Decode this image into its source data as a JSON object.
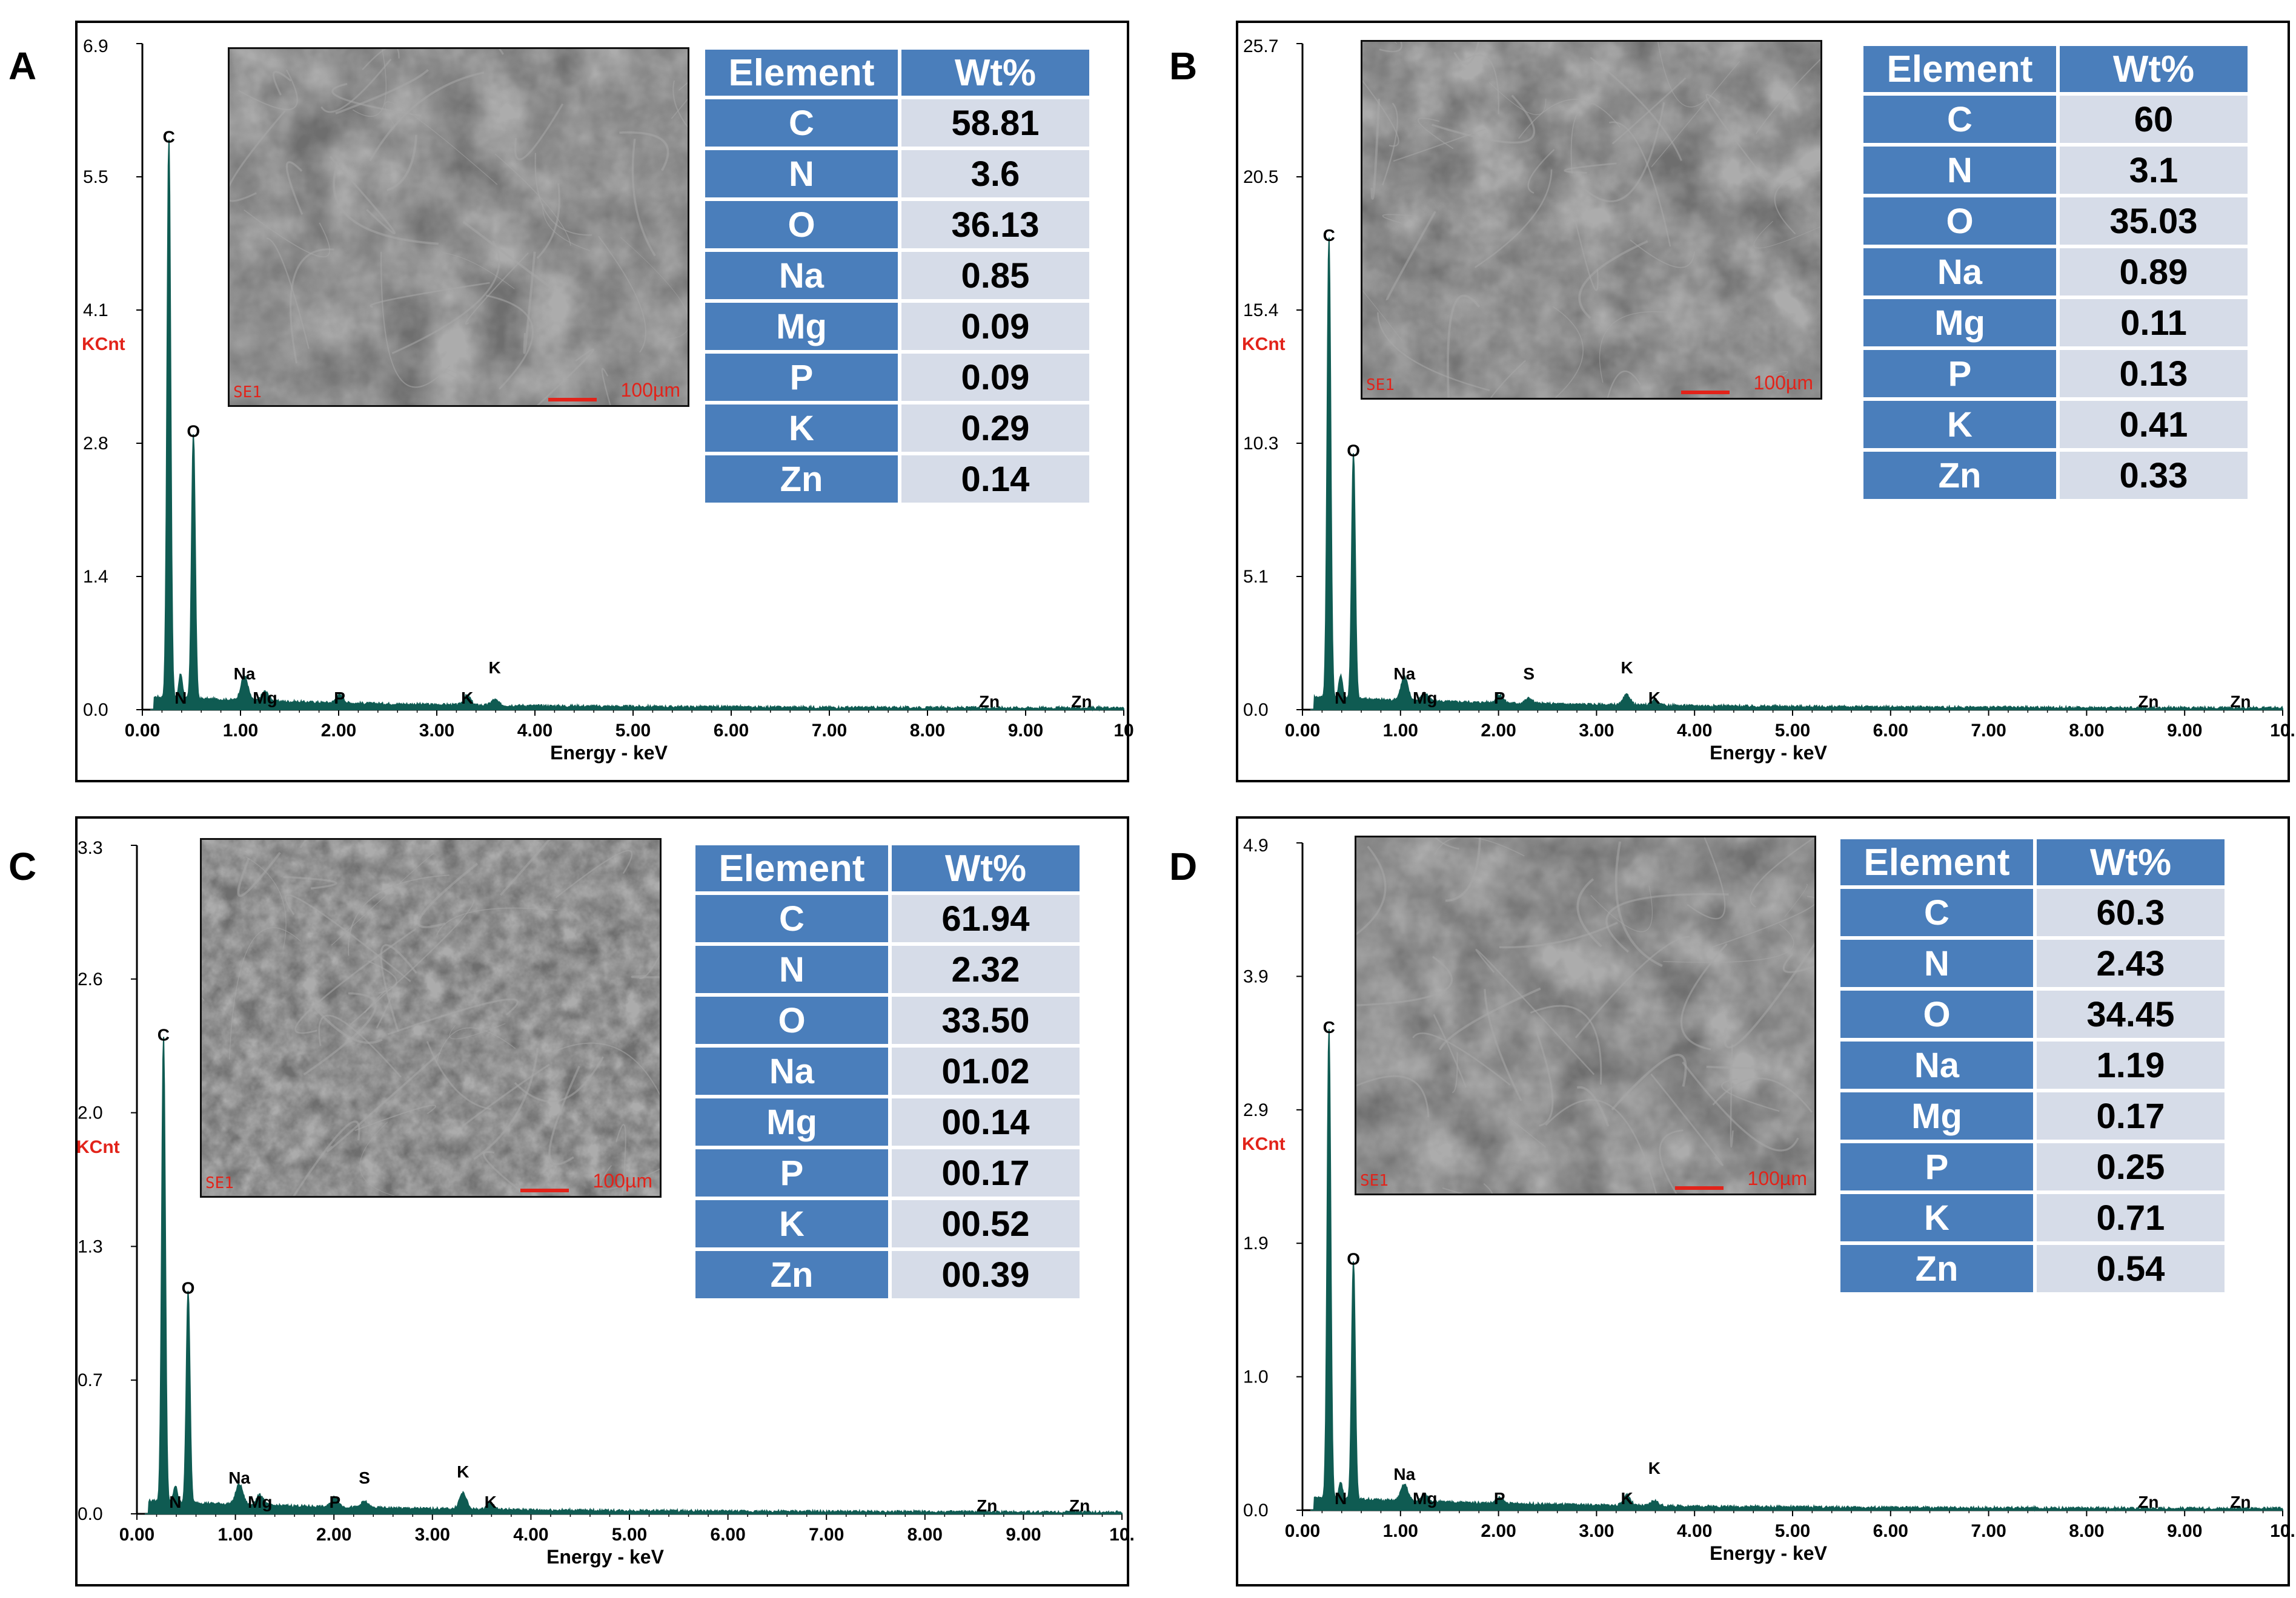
{
  "chart_data": [
    {
      "panel": "A",
      "type": "line",
      "ylabel": "KCnt",
      "xlabel": "Energy - keV",
      "ylim": [
        0,
        6.9
      ],
      "xlim": [
        0,
        10
      ],
      "ytick_labels": [
        "0.0",
        "1.4",
        "2.8",
        "4.1",
        "5.5",
        "6.9"
      ],
      "xtick_labels": [
        "0.00",
        "1.00",
        "2.00",
        "3.00",
        "4.00",
        "5.00",
        "6.00",
        "7.00",
        "8.00",
        "9.00",
        "10"
      ],
      "peaks": [
        {
          "label": "C",
          "x": 0.27,
          "y": 5.8
        },
        {
          "label": "N",
          "x": 0.39,
          "y": 0.25
        },
        {
          "label": "O",
          "x": 0.52,
          "y": 2.75
        },
        {
          "label": "Na",
          "x": 1.04,
          "y": 0.25
        },
        {
          "label": "Mg",
          "x": 1.25,
          "y": 0.1
        },
        {
          "label": "P",
          "x": 2.01,
          "y": 0.08
        },
        {
          "label": "K",
          "x": 3.31,
          "y": 0.1
        },
        {
          "label": "K",
          "x": 3.59,
          "y": 0.06
        },
        {
          "label": "Zn",
          "x": 8.63,
          "y": 0.0
        },
        {
          "label": "Zn",
          "x": 9.57,
          "y": 0.0
        }
      ],
      "sem": {
        "label": "SE1",
        "scale": "100µm"
      },
      "table": {
        "header": [
          "Element",
          "Wt%"
        ],
        "rows": [
          [
            "C",
            "58.81"
          ],
          [
            "N",
            "3.6"
          ],
          [
            "O",
            "36.13"
          ],
          [
            "Na",
            "0.85"
          ],
          [
            "Mg",
            "0.09"
          ],
          [
            "P",
            "0.09"
          ],
          [
            "K",
            "0.29"
          ],
          [
            "Zn",
            "0.14"
          ]
        ]
      }
    },
    {
      "panel": "B",
      "type": "line",
      "ylabel": "KCnt",
      "xlabel": "Energy - keV",
      "ylim": [
        0,
        25.7
      ],
      "xlim": [
        0,
        10
      ],
      "ytick_labels": [
        "0.0",
        "5.1",
        "10.3",
        "15.4",
        "20.5",
        "25.7"
      ],
      "xtick_labels": [
        "0.00",
        "1.00",
        "2.00",
        "3.00",
        "4.00",
        "5.00",
        "6.00",
        "7.00",
        "8.00",
        "9.00",
        "10."
      ],
      "peaks": [
        {
          "label": "C",
          "x": 0.27,
          "y": 17.8
        },
        {
          "label": "N",
          "x": 0.39,
          "y": 0.9
        },
        {
          "label": "O",
          "x": 0.52,
          "y": 9.5
        },
        {
          "label": "Na",
          "x": 1.04,
          "y": 0.9
        },
        {
          "label": "Mg",
          "x": 1.25,
          "y": 0.3
        },
        {
          "label": "P",
          "x": 2.01,
          "y": 0.3
        },
        {
          "label": "S",
          "x": 2.31,
          "y": 0.2
        },
        {
          "label": "K",
          "x": 3.31,
          "y": 0.4
        },
        {
          "label": "K",
          "x": 3.59,
          "y": 0.2
        },
        {
          "label": "Zn",
          "x": 8.63,
          "y": 0.0
        },
        {
          "label": "Zn",
          "x": 9.57,
          "y": 0.0
        }
      ],
      "sem": {
        "label": "SE1",
        "scale": "100µm"
      },
      "table": {
        "header": [
          "Element",
          "Wt%"
        ],
        "rows": [
          [
            "C",
            "60"
          ],
          [
            "N",
            "3.1"
          ],
          [
            "O",
            "35.03"
          ],
          [
            "Na",
            "0.89"
          ],
          [
            "Mg",
            "0.11"
          ],
          [
            "P",
            "0.13"
          ],
          [
            "K",
            "0.41"
          ],
          [
            "Zn",
            "0.33"
          ]
        ]
      }
    },
    {
      "panel": "C",
      "type": "line",
      "ylabel": "KCnt",
      "xlabel": "Energy - keV",
      "ylim": [
        0,
        3.3
      ],
      "xlim": [
        0,
        10
      ],
      "ytick_labels": [
        "0.0",
        "0.7",
        "1.3",
        "2.0",
        "2.6",
        "3.3"
      ],
      "xtick_labels": [
        "0.00",
        "1.00",
        "2.00",
        "3.00",
        "4.00",
        "5.00",
        "6.00",
        "7.00",
        "8.00",
        "9.00",
        "10."
      ],
      "peaks": [
        {
          "label": "C",
          "x": 0.27,
          "y": 2.3
        },
        {
          "label": "N",
          "x": 0.39,
          "y": 0.08
        },
        {
          "label": "O",
          "x": 0.52,
          "y": 1.05
        },
        {
          "label": "Na",
          "x": 1.04,
          "y": 0.1
        },
        {
          "label": "Mg",
          "x": 1.25,
          "y": 0.05
        },
        {
          "label": "P",
          "x": 2.01,
          "y": 0.05
        },
        {
          "label": "S",
          "x": 2.31,
          "y": 0.03
        },
        {
          "label": "K",
          "x": 3.31,
          "y": 0.08
        },
        {
          "label": "K",
          "x": 3.59,
          "y": 0.03
        },
        {
          "label": "Zn",
          "x": 8.63,
          "y": 0.0
        },
        {
          "label": "Zn",
          "x": 9.57,
          "y": 0.0
        }
      ],
      "sem": {
        "label": "SE1",
        "scale": "100µm"
      },
      "table": {
        "header": [
          "Element",
          "Wt%"
        ],
        "rows": [
          [
            "C",
            "61.94"
          ],
          [
            "N",
            "2.32"
          ],
          [
            "O",
            "33.50"
          ],
          [
            "Na",
            "01.02"
          ],
          [
            "Mg",
            "00.14"
          ],
          [
            "P",
            "00.17"
          ],
          [
            "K",
            "00.52"
          ],
          [
            "Zn",
            "00.39"
          ]
        ]
      }
    },
    {
      "panel": "D",
      "type": "line",
      "ylabel": "KCnt",
      "xlabel": "Energy - keV",
      "ylim": [
        0,
        4.9
      ],
      "xlim": [
        0,
        10
      ],
      "ytick_labels": [
        "0.0",
        "1.0",
        "1.9",
        "2.9",
        "3.9",
        "4.9"
      ],
      "xtick_labels": [
        "0.00",
        "1.00",
        "2.00",
        "3.00",
        "4.00",
        "5.00",
        "6.00",
        "7.00",
        "8.00",
        "9.00",
        "10."
      ],
      "peaks": [
        {
          "label": "C",
          "x": 0.27,
          "y": 3.45
        },
        {
          "label": "N",
          "x": 0.39,
          "y": 0.12
        },
        {
          "label": "O",
          "x": 0.52,
          "y": 1.75
        },
        {
          "label": "Na",
          "x": 1.04,
          "y": 0.12
        },
        {
          "label": "Mg",
          "x": 1.25,
          "y": 0.05
        },
        {
          "label": "P",
          "x": 2.01,
          "y": 0.04
        },
        {
          "label": "K",
          "x": 3.31,
          "y": 0.08
        },
        {
          "label": "K",
          "x": 3.59,
          "y": 0.04
        },
        {
          "label": "Zn",
          "x": 8.63,
          "y": 0.0
        },
        {
          "label": "Zn",
          "x": 9.57,
          "y": 0.0
        }
      ],
      "sem": {
        "label": "SE1",
        "scale": "100µm"
      },
      "table": {
        "header": [
          "Element",
          "Wt%"
        ],
        "rows": [
          [
            "C",
            "60.3"
          ],
          [
            "N",
            "2.43"
          ],
          [
            "O",
            "34.45"
          ],
          [
            "Na",
            "1.19"
          ],
          [
            "Mg",
            "0.17"
          ],
          [
            "P",
            "0.25"
          ],
          [
            "K",
            "0.71"
          ],
          [
            "Zn",
            "0.54"
          ]
        ]
      }
    }
  ],
  "colors": {
    "spectrum": "#0f5b52",
    "axis_label_red": "#e2231a",
    "table_header": "#4a7ebb",
    "table_value_bg": "#d6dce8"
  }
}
